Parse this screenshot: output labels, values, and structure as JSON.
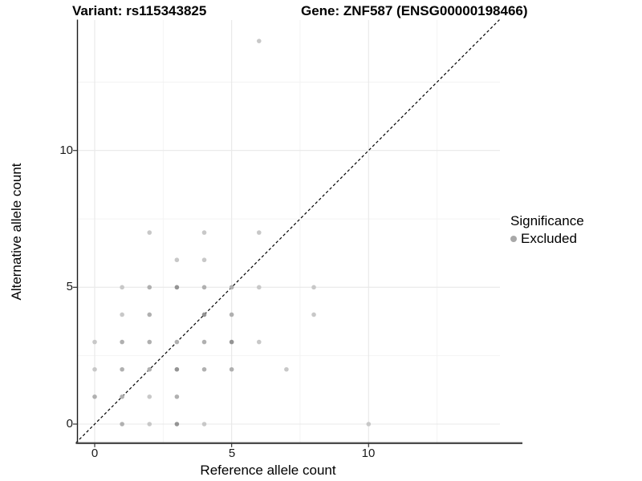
{
  "titles": {
    "variant": "Variant: rs115343825",
    "gene": "Gene: ZNF587 (ENSG00000198466)"
  },
  "legend": {
    "title": "Significance",
    "items": [
      {
        "label": "Excluded",
        "color": "#a8a8a8"
      }
    ]
  },
  "chart_data": {
    "type": "scatter",
    "title": "",
    "xlabel": "Reference allele count",
    "ylabel": "Alternative allele count",
    "x_ticks": [
      0,
      5,
      10
    ],
    "y_ticks": [
      0,
      5,
      10
    ],
    "xlim": [
      -0.7,
      14.8
    ],
    "ylim": [
      -0.7,
      14.8
    ],
    "grid": "major and minor, light gray, on white background",
    "legend_position": "right",
    "identity_line": {
      "present": true,
      "style": "dashed",
      "color": "#000000",
      "from": [
        -0.69,
        -0.69
      ],
      "to": [
        14.78,
        14.78
      ]
    },
    "point_colors": {
      "light": "#c8c8c8",
      "medium": "#b0b0b0",
      "dark": "#949494"
    },
    "series": [
      {
        "name": "Excluded",
        "note": "all points excluded from significance; shade encodes overplotting density"
      }
    ],
    "points": [
      {
        "x": 1,
        "y": 0,
        "shade": "medium"
      },
      {
        "x": 2,
        "y": 0,
        "shade": "light"
      },
      {
        "x": 3,
        "y": 0,
        "shade": "dark"
      },
      {
        "x": 4,
        "y": 0,
        "shade": "light"
      },
      {
        "x": 10,
        "y": 0,
        "shade": "light"
      },
      {
        "x": 0,
        "y": 1,
        "shade": "medium"
      },
      {
        "x": 1,
        "y": 1,
        "shade": "medium"
      },
      {
        "x": 2,
        "y": 1,
        "shade": "light"
      },
      {
        "x": 3,
        "y": 1,
        "shade": "medium"
      },
      {
        "x": 0,
        "y": 2,
        "shade": "light"
      },
      {
        "x": 1,
        "y": 2,
        "shade": "medium"
      },
      {
        "x": 2,
        "y": 2,
        "shade": "medium"
      },
      {
        "x": 3,
        "y": 2,
        "shade": "dark"
      },
      {
        "x": 4,
        "y": 2,
        "shade": "medium"
      },
      {
        "x": 5,
        "y": 2,
        "shade": "medium"
      },
      {
        "x": 7,
        "y": 2,
        "shade": "light"
      },
      {
        "x": 0,
        "y": 3,
        "shade": "light"
      },
      {
        "x": 1,
        "y": 3,
        "shade": "medium"
      },
      {
        "x": 2,
        "y": 3,
        "shade": "medium"
      },
      {
        "x": 3,
        "y": 3,
        "shade": "medium"
      },
      {
        "x": 4,
        "y": 3,
        "shade": "medium"
      },
      {
        "x": 5,
        "y": 3,
        "shade": "dark"
      },
      {
        "x": 6,
        "y": 3,
        "shade": "light"
      },
      {
        "x": 1,
        "y": 4,
        "shade": "light"
      },
      {
        "x": 2,
        "y": 4,
        "shade": "medium"
      },
      {
        "x": 4,
        "y": 4,
        "shade": "dark"
      },
      {
        "x": 5,
        "y": 4,
        "shade": "medium"
      },
      {
        "x": 8,
        "y": 4,
        "shade": "light"
      },
      {
        "x": 1,
        "y": 5,
        "shade": "light"
      },
      {
        "x": 2,
        "y": 5,
        "shade": "medium"
      },
      {
        "x": 3,
        "y": 5,
        "shade": "dark"
      },
      {
        "x": 4,
        "y": 5,
        "shade": "medium"
      },
      {
        "x": 5,
        "y": 5,
        "shade": "medium"
      },
      {
        "x": 6,
        "y": 5,
        "shade": "light"
      },
      {
        "x": 8,
        "y": 5,
        "shade": "light"
      },
      {
        "x": 3,
        "y": 6,
        "shade": "light"
      },
      {
        "x": 4,
        "y": 6,
        "shade": "light"
      },
      {
        "x": 2,
        "y": 7,
        "shade": "light"
      },
      {
        "x": 4,
        "y": 7,
        "shade": "light"
      },
      {
        "x": 6,
        "y": 7,
        "shade": "light"
      },
      {
        "x": 6,
        "y": 14,
        "shade": "light"
      }
    ]
  }
}
